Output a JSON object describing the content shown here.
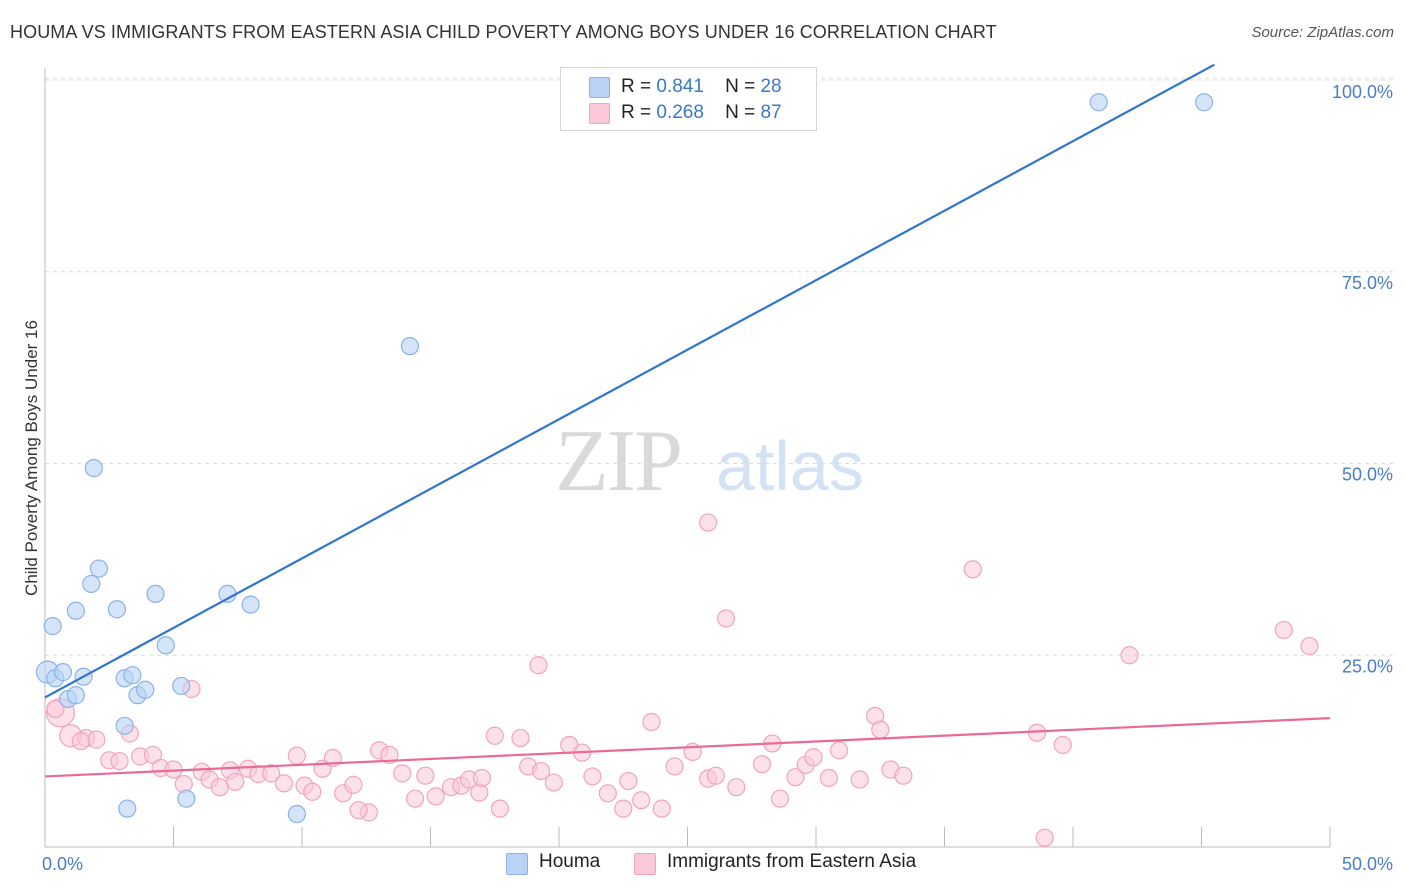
{
  "title": "HOUMA VS IMMIGRANTS FROM EASTERN ASIA CHILD POVERTY AMONG BOYS UNDER 16 CORRELATION CHART",
  "source": "Source: ZipAtlas.com",
  "watermark": {
    "zip": "ZIP",
    "atlas": "atlas"
  },
  "legend": {
    "r_label": "R =",
    "n_label": "N =",
    "rows": [
      {
        "name": "Houma",
        "r": "0.841",
        "n": "28",
        "fill": "#b9d3f5",
        "stroke": "#8cb1e6"
      },
      {
        "name": "Immigrants from Eastern Asia",
        "r": "0.268",
        "n": "87",
        "fill": "#fac8d8",
        "stroke": "#f0a4bd"
      }
    ]
  },
  "chart_data": {
    "type": "scatter",
    "title": "HOUMA VS IMMIGRANTS FROM EASTERN ASIA CHILD POVERTY AMONG BOYS UNDER 16 CORRELATION CHART",
    "xlabel": "",
    "ylabel": "Child Poverty Among Boys Under 16",
    "xlim": [
      0,
      50
    ],
    "ylim": [
      0,
      105
    ],
    "x_tick_labels": [
      "0.0%",
      "50.0%"
    ],
    "y_ticks": [
      25,
      50,
      75,
      100
    ],
    "y_tick_labels": [
      "25.0%",
      "50.0%",
      "75.0%",
      "100.0%"
    ],
    "grid": true,
    "colors": {
      "houma_fill": "#b9d3f5",
      "houma_stroke": "#8cb1e6",
      "houma_line": "#2f74cf",
      "asia_fill": "#fac8d8",
      "asia_stroke": "#f0a4bd",
      "asia_line": "#e86a96",
      "grid": "#dcdcdc",
      "axis": "#bbbbbb"
    },
    "series": [
      {
        "name": "Houma",
        "trend": {
          "x": [
            0,
            45.5
          ],
          "y": [
            19.5,
            102
          ]
        },
        "points": [
          [
            0.1,
            22.8
          ],
          [
            0.4,
            22.0
          ],
          [
            0.3,
            28.8
          ],
          [
            0.7,
            22.8
          ],
          [
            0.9,
            19.3
          ],
          [
            1.2,
            19.8
          ],
          [
            1.5,
            22.2
          ],
          [
            1.2,
            30.8
          ],
          [
            1.8,
            34.3
          ],
          [
            1.9,
            49.4
          ],
          [
            2.1,
            36.3
          ],
          [
            2.8,
            31.0
          ],
          [
            3.1,
            15.8
          ],
          [
            3.1,
            22.0
          ],
          [
            3.2,
            5.0
          ],
          [
            3.4,
            22.4
          ],
          [
            3.6,
            19.8
          ],
          [
            3.9,
            20.5
          ],
          [
            4.3,
            33.0
          ],
          [
            4.7,
            26.3
          ],
          [
            5.3,
            21.0
          ],
          [
            5.5,
            6.3
          ],
          [
            7.1,
            33.0
          ],
          [
            8.0,
            31.6
          ],
          [
            9.8,
            4.3
          ],
          [
            14.2,
            65.3
          ],
          [
            41.0,
            97.1
          ],
          [
            45.1,
            97.1
          ]
        ]
      },
      {
        "name": "Immigrants from Eastern Asia",
        "trend": {
          "x": [
            0,
            50
          ],
          "y": [
            9.2,
            16.8
          ]
        },
        "points": [
          [
            0.6,
            17.5
          ],
          [
            1.0,
            14.5
          ],
          [
            1.6,
            14.2
          ],
          [
            2.0,
            14.0
          ],
          [
            2.5,
            11.3
          ],
          [
            2.9,
            11.2
          ],
          [
            3.3,
            14.8
          ],
          [
            3.7,
            11.8
          ],
          [
            4.2,
            12.0
          ],
          [
            4.5,
            10.3
          ],
          [
            5.0,
            10.1
          ],
          [
            5.4,
            8.2
          ],
          [
            5.7,
            20.6
          ],
          [
            6.1,
            9.8
          ],
          [
            6.4,
            8.8
          ],
          [
            6.8,
            7.8
          ],
          [
            7.2,
            10.0
          ],
          [
            7.4,
            8.5
          ],
          [
            7.9,
            10.2
          ],
          [
            8.3,
            9.5
          ],
          [
            8.8,
            9.6
          ],
          [
            9.3,
            8.3
          ],
          [
            9.8,
            11.9
          ],
          [
            10.1,
            8.0
          ],
          [
            10.4,
            7.2
          ],
          [
            10.8,
            10.2
          ],
          [
            11.2,
            11.6
          ],
          [
            11.6,
            7.0
          ],
          [
            12.0,
            8.1
          ],
          [
            12.6,
            4.5
          ],
          [
            13.0,
            12.6
          ],
          [
            13.4,
            12.0
          ],
          [
            13.9,
            9.6
          ],
          [
            14.4,
            6.3
          ],
          [
            14.8,
            9.3
          ],
          [
            15.2,
            6.6
          ],
          [
            15.8,
            7.8
          ],
          [
            16.2,
            8.0
          ],
          [
            16.5,
            8.8
          ],
          [
            16.9,
            7.1
          ],
          [
            17.5,
            14.5
          ],
          [
            17.7,
            5.0
          ],
          [
            18.5,
            14.2
          ],
          [
            18.8,
            10.5
          ],
          [
            19.3,
            9.9
          ],
          [
            19.2,
            23.7
          ],
          [
            19.8,
            8.4
          ],
          [
            20.4,
            13.3
          ],
          [
            20.9,
            12.3
          ],
          [
            21.3,
            9.2
          ],
          [
            21.9,
            7.0
          ],
          [
            22.5,
            5.0
          ],
          [
            22.7,
            8.6
          ],
          [
            23.2,
            6.1
          ],
          [
            23.6,
            16.3
          ],
          [
            24.0,
            5.0
          ],
          [
            24.5,
            10.5
          ],
          [
            25.2,
            12.4
          ],
          [
            25.8,
            8.9
          ],
          [
            26.1,
            9.3
          ],
          [
            25.8,
            42.3
          ],
          [
            26.5,
            29.8
          ],
          [
            26.9,
            7.8
          ],
          [
            27.9,
            10.8
          ],
          [
            28.3,
            13.5
          ],
          [
            28.6,
            6.3
          ],
          [
            29.2,
            9.1
          ],
          [
            29.6,
            10.7
          ],
          [
            29.9,
            11.7
          ],
          [
            30.5,
            9.0
          ],
          [
            30.9,
            12.6
          ],
          [
            31.7,
            8.8
          ],
          [
            32.3,
            17.1
          ],
          [
            32.5,
            15.3
          ],
          [
            32.9,
            10.1
          ],
          [
            33.4,
            9.3
          ],
          [
            36.1,
            36.2
          ],
          [
            38.6,
            14.9
          ],
          [
            38.9,
            1.2
          ],
          [
            39.6,
            13.3
          ],
          [
            42.2,
            25.0
          ],
          [
            48.2,
            28.3
          ],
          [
            49.2,
            26.2
          ],
          [
            0.4,
            18.0
          ],
          [
            1.4,
            13.8
          ],
          [
            12.2,
            4.8
          ],
          [
            17.0,
            9.0
          ]
        ]
      }
    ]
  }
}
